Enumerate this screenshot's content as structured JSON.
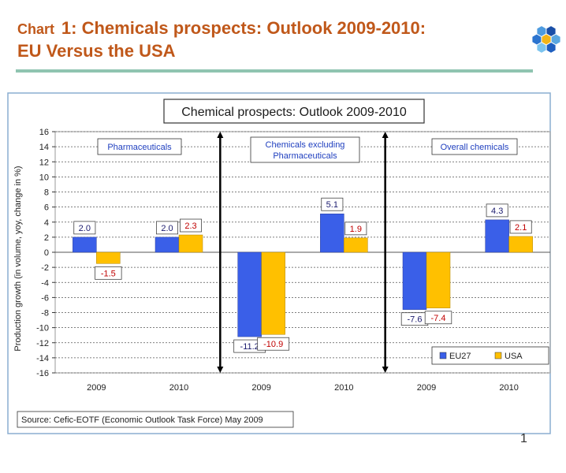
{
  "slide": {
    "title_prefix": "Chart",
    "title_number": "1",
    "title_line1_rest": ": Chemicals prospects: Outlook 2009-2010:",
    "title_line2": "EU Versus the USA",
    "page_number": "1",
    "logo_icon": "hexagon-flower-logo-icon"
  },
  "chart_data": {
    "type": "bar",
    "title": "Chemical prospects: Outlook 2009-2010",
    "ylabel": "Production growth (in volume, yoy, change in %)",
    "xlabel": "",
    "ylim": [
      -16,
      16
    ],
    "yticks": [
      16,
      14,
      12,
      10,
      8,
      6,
      4,
      2,
      0,
      -2,
      -4,
      -6,
      -8,
      -10,
      -12,
      -14,
      -16
    ],
    "grid": true,
    "legend_position": "bottom-right",
    "categories": [
      "2009",
      "2010",
      "2009",
      "2010",
      "2009",
      "2010"
    ],
    "groups": [
      {
        "label": "Pharmaceuticals",
        "categories": [
          0,
          1
        ]
      },
      {
        "label": "Chemicals excluding Pharmaceuticals",
        "categories": [
          2,
          3
        ]
      },
      {
        "label": "Overall chemicals",
        "categories": [
          4,
          5
        ]
      }
    ],
    "series": [
      {
        "name": "EU27",
        "color": "#3a5fe8",
        "values": [
          2.0,
          2.0,
          -11.2,
          5.1,
          -7.6,
          4.3
        ]
      },
      {
        "name": "USA",
        "color": "#ffc000",
        "values": [
          -1.5,
          2.3,
          -10.9,
          1.9,
          -7.4,
          2.1
        ]
      }
    ],
    "value_labels": {
      "EU27": [
        "2.0",
        "2.0",
        "-11.2",
        "5.1",
        "-7.6",
        "4.3"
      ],
      "USA": [
        "-1.5",
        "2.3",
        "-10.9",
        "1.9",
        "-7.4",
        "2.1"
      ]
    },
    "source": "Source: Cefic-EOTF  (Economic Outlook Task Force) May 2009",
    "colors": {
      "frame_border": "#8aaed0",
      "frame_bg": "#ffffff",
      "plot_border": "#9a9a9a",
      "eu_label_text": "#1a1a6e",
      "usa_label_text": "#c00000",
      "group_label_text": "#1f3fbf",
      "title_color": "#c0581a"
    }
  }
}
